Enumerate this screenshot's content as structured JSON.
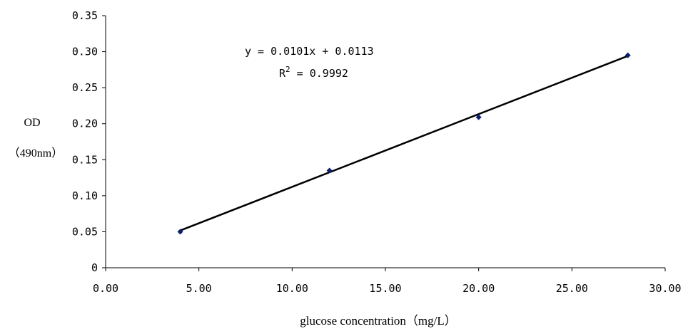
{
  "chart_data": {
    "type": "scatter",
    "title": "",
    "xlabel": "glucose concentration（mg/L）",
    "ylabel_line1": "OD",
    "ylabel_line2": "（490nm）",
    "xlim": [
      0,
      30
    ],
    "ylim": [
      0,
      0.35
    ],
    "x_ticks": [
      "0.00",
      "5.00",
      "10.00",
      "15.00",
      "20.00",
      "25.00",
      "30.00"
    ],
    "y_ticks": [
      "0",
      "0.05",
      "0.10",
      "0.15",
      "0.20",
      "0.25",
      "0.30",
      "0.35"
    ],
    "grid": false,
    "legend": "none",
    "points": [
      {
        "x": 4,
        "y": 0.05
      },
      {
        "x": 12,
        "y": 0.135
      },
      {
        "x": 20,
        "y": 0.209
      },
      {
        "x": 28,
        "y": 0.295
      }
    ],
    "trendline": {
      "type": "linear",
      "slope": 0.0101,
      "intercept": 0.0113,
      "x_range": [
        4,
        28
      ],
      "equation_text": "y = 0.0101x + 0.0113",
      "r2_prefix": "R",
      "r2_sup": "2",
      "r2_value": " = 0.9992"
    },
    "colors": {
      "marker": "#0a1f6e",
      "line": "#000000"
    }
  }
}
